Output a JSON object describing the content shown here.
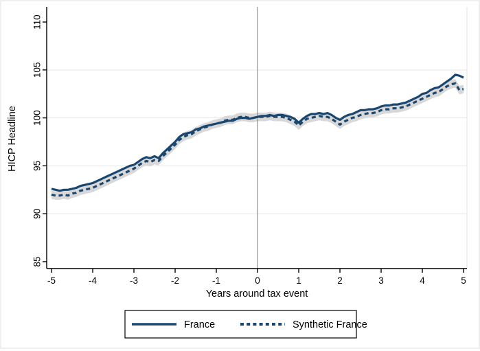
{
  "chart_data": {
    "type": "line",
    "title": "",
    "xlabel": "Years around tax event",
    "ylabel": "HICP Headline",
    "x_start": -5,
    "x_step": 0.1,
    "xlim": [
      -5.117,
      5.083
    ],
    "ylim": [
      84.28,
      111.58
    ],
    "xticks": [
      -5,
      -4,
      -3,
      -2,
      -1,
      0,
      1,
      2,
      3,
      4,
      5
    ],
    "yticks": [
      85,
      90,
      95,
      100,
      105,
      110
    ],
    "grid_yticks": [
      90,
      95,
      100,
      105
    ],
    "grid": "on",
    "event_line_x": 0,
    "legend_position": "bottom-center",
    "band": {
      "around_series": "Synthetic France",
      "halfwidth": 0.45
    },
    "series": [
      {
        "name": "France",
        "style": "solid",
        "values": [
          92.6,
          92.5,
          92.4,
          92.5,
          92.5,
          92.6,
          92.7,
          92.9,
          93.0,
          93.1,
          93.2,
          93.4,
          93.6,
          93.8,
          94.0,
          94.2,
          94.4,
          94.6,
          94.8,
          95.0,
          95.1,
          95.4,
          95.7,
          95.9,
          95.8,
          96.0,
          95.8,
          96.3,
          96.7,
          97.1,
          97.5,
          98.0,
          98.3,
          98.4,
          98.5,
          98.8,
          98.9,
          99.1,
          99.2,
          99.3,
          99.4,
          99.5,
          99.6,
          99.7,
          99.7,
          99.9,
          100.0,
          100.0,
          99.9,
          100.0,
          100.1,
          100.2,
          100.2,
          100.3,
          100.2,
          100.3,
          100.3,
          100.2,
          100.1,
          99.9,
          99.5,
          99.9,
          100.2,
          100.4,
          100.4,
          100.5,
          100.4,
          100.5,
          100.3,
          100.0,
          99.8,
          100.1,
          100.3,
          100.4,
          100.6,
          100.8,
          100.8,
          100.9,
          100.9,
          101.0,
          101.2,
          101.3,
          101.3,
          101.4,
          101.4,
          101.5,
          101.6,
          101.8,
          102.0,
          102.2,
          102.5,
          102.6,
          102.9,
          103.1,
          103.2,
          103.5,
          103.8,
          104.1,
          104.5,
          104.4,
          104.2
        ]
      },
      {
        "name": "Synthetic France",
        "style": "dashed",
        "values": [
          92.0,
          91.9,
          91.9,
          92.0,
          91.9,
          92.1,
          92.2,
          92.4,
          92.5,
          92.6,
          92.7,
          92.9,
          93.1,
          93.3,
          93.5,
          93.7,
          93.9,
          94.1,
          94.3,
          94.5,
          94.7,
          95.0,
          95.3,
          95.5,
          95.4,
          95.6,
          95.5,
          96.0,
          96.4,
          96.8,
          97.2,
          97.7,
          98.0,
          98.2,
          98.3,
          98.6,
          98.8,
          99.0,
          99.1,
          99.3,
          99.4,
          99.5,
          99.7,
          99.8,
          99.8,
          100.0,
          100.1,
          100.1,
          100.0,
          100.0,
          100.1,
          100.1,
          100.1,
          100.2,
          100.1,
          100.1,
          100.1,
          100.0,
          99.8,
          99.6,
          99.2,
          99.6,
          99.9,
          100.0,
          100.1,
          100.2,
          100.1,
          100.1,
          99.9,
          99.6,
          99.3,
          99.6,
          99.8,
          100.0,
          100.1,
          100.3,
          100.4,
          100.5,
          100.5,
          100.6,
          100.8,
          100.9,
          100.9,
          101.0,
          101.0,
          101.1,
          101.2,
          101.4,
          101.6,
          101.8,
          102.0,
          102.2,
          102.4,
          102.6,
          102.7,
          103.0,
          103.3,
          103.5,
          103.6,
          102.9,
          103.0
        ]
      }
    ]
  },
  "legend": {
    "france_label": "France",
    "synthetic_label": "Synthetic France"
  },
  "colors": {
    "line": "#1a476f",
    "band": "#d8d8d8",
    "grid": "#e8e8e8",
    "plot_right_edge": "#e3e3e3",
    "event_line": "#8f8f8f",
    "axis": "#000000",
    "background": "#ffffff"
  }
}
